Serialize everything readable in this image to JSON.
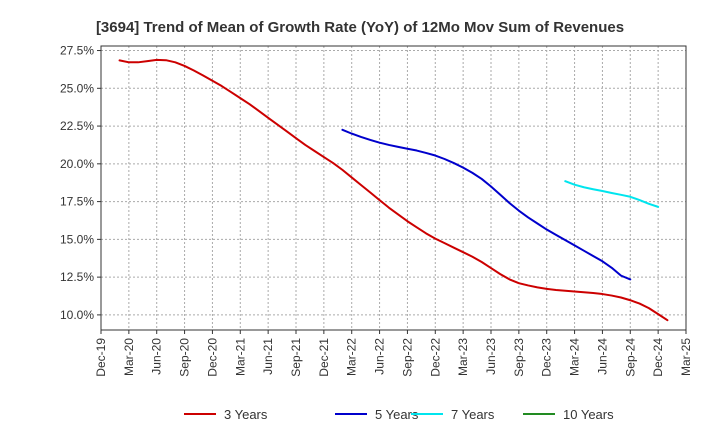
{
  "chart_data": {
    "type": "line",
    "title": "[3694]  Trend of Mean of Growth Rate (YoY) of 12Mo Mov Sum of Revenues",
    "xlabel": "",
    "ylabel": "",
    "y_ticks": [
      "10.0%",
      "12.5%",
      "15.0%",
      "17.5%",
      "20.0%",
      "22.5%",
      "25.0%",
      "27.5%"
    ],
    "y_tick_values": [
      10.0,
      12.5,
      15.0,
      17.5,
      20.0,
      22.5,
      25.0,
      27.5
    ],
    "ylim": [
      9.0,
      27.8
    ],
    "x_ticks": [
      "Dec-19",
      "Mar-20",
      "Jun-20",
      "Sep-20",
      "Dec-20",
      "Mar-21",
      "Jun-21",
      "Sep-21",
      "Dec-21",
      "Mar-22",
      "Jun-22",
      "Sep-22",
      "Dec-22",
      "Mar-23",
      "Jun-23",
      "Sep-23",
      "Dec-23",
      "Mar-24",
      "Jun-24",
      "Sep-24",
      "Dec-24",
      "Mar-25"
    ],
    "grid": true,
    "legend_position": "bottom",
    "series": [
      {
        "name": "3 Years",
        "color": "#cc0000",
        "start_index": 2,
        "values": [
          26.85,
          26.72,
          26.72,
          26.8,
          26.88,
          26.86,
          26.72,
          26.48,
          26.18,
          25.85,
          25.5,
          25.15,
          24.75,
          24.35,
          23.95,
          23.5,
          23.05,
          22.6,
          22.15,
          21.7,
          21.25,
          20.85,
          20.45,
          20.05,
          19.6,
          19.1,
          18.6,
          18.1,
          17.6,
          17.1,
          16.65,
          16.2,
          15.8,
          15.4,
          15.05,
          14.75,
          14.45,
          14.15,
          13.85,
          13.5,
          13.1,
          12.7,
          12.35,
          12.1,
          11.95,
          11.82,
          11.72,
          11.65,
          11.6,
          11.55,
          11.5,
          11.45,
          11.38,
          11.28,
          11.15,
          10.97,
          10.75,
          10.45,
          10.05,
          9.65
        ]
      },
      {
        "name": "5 Years",
        "color": "#0000cc",
        "start_index": 26,
        "values": [
          22.25,
          22.0,
          21.78,
          21.58,
          21.4,
          21.25,
          21.12,
          21.0,
          20.88,
          20.72,
          20.55,
          20.32,
          20.05,
          19.75,
          19.4,
          19.0,
          18.5,
          17.95,
          17.4,
          16.9,
          16.45,
          16.05,
          15.65,
          15.3,
          14.95,
          14.6,
          14.25,
          13.9,
          13.55,
          13.12,
          12.6,
          12.35
        ]
      },
      {
        "name": "7 Years",
        "color": "#00e5ee",
        "start_index": 50,
        "values": [
          18.85,
          18.62,
          18.45,
          18.32,
          18.2,
          18.07,
          17.95,
          17.82,
          17.6,
          17.35,
          17.15
        ]
      },
      {
        "name": "10 Years",
        "color": "#228b22",
        "start_index": 0,
        "values": []
      }
    ]
  }
}
